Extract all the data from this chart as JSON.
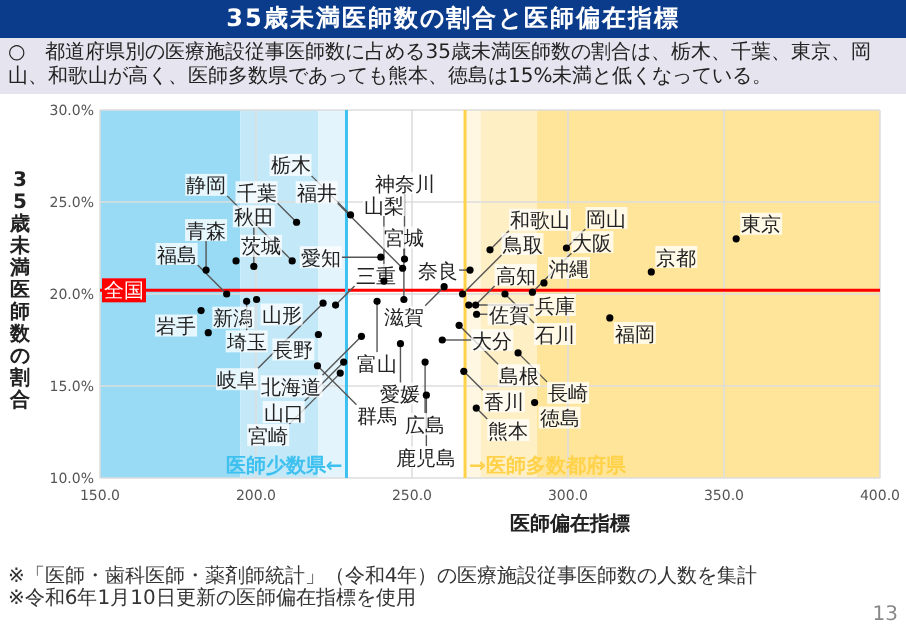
{
  "chart_data": {
    "type": "scatter",
    "title": "35歳未満医師数の割合と医師偏在指標",
    "subtitle": "○　都道府県別の医療施設従事医師数に占める35歳未満医師数の割合は、栃木、千葉、東京、岡山、和歌山が高く、医師多数県であっても熊本、徳島は15%未満と低くなっている。",
    "xlabel": "医師偏在指標",
    "ylabel": "35歳未満医師数の割合",
    "xlim": [
      150,
      400
    ],
    "ylim": [
      10,
      30
    ],
    "xticks": [
      {
        "value": 150,
        "label": "150.0"
      },
      {
        "value": 200,
        "label": "200.0"
      },
      {
        "value": 250,
        "label": "250.0"
      },
      {
        "value": 300,
        "label": "300.0"
      },
      {
        "value": 350,
        "label": "350.0"
      },
      {
        "value": 400,
        "label": "400.0"
      }
    ],
    "yticks": [
      {
        "value": 10,
        "label": "10.0%"
      },
      {
        "value": 15,
        "label": "15.0%"
      },
      {
        "value": 20,
        "label": "20.0%"
      },
      {
        "value": 25,
        "label": "25.0%"
      },
      {
        "value": 30,
        "label": "30.0%"
      }
    ],
    "grid": true,
    "marker": "circle",
    "series": [
      {
        "color": "#000000",
        "x": [
          230.3,
          213,
          193.6,
          184,
          199.3,
          211.6,
          240,
          247.6,
          247,
          241,
          260.3,
          182.4,
          190.6,
          200.2,
          197,
          221.5,
          225.5,
          238.8,
          247.4,
          184.7,
          220,
          233.8,
          246.3,
          259.7,
          254.2,
          228.1,
          219.7,
          227,
          254.6,
          265.1,
          268.6,
          266.2,
          268.2,
          270.4,
          279.8,
          288.6,
          292.3,
          275,
          299.5,
          326.7,
          353.9,
          313.4,
          270.7,
          284,
          266.6,
          270.6,
          289.3
        ],
        "values": [
          24.3,
          23.9,
          21.8,
          21.3,
          21.5,
          21.8,
          22.0,
          21.9,
          21.4,
          20.7,
          20.4,
          19.1,
          20.0,
          19.7,
          19.6,
          19.5,
          19.4,
          19.6,
          19.7,
          17.9,
          17.8,
          17.7,
          17.3,
          17.5,
          16.3,
          16.3,
          16.1,
          15.7,
          14.5,
          18.3,
          21.3,
          20.0,
          19.4,
          19.4,
          20.0,
          20.1,
          20.6,
          22.4,
          22.5,
          21.2,
          23.0,
          18.7,
          18.9,
          16.8,
          15.8,
          13.8,
          14.1
        ]
      }
    ],
    "annotations": [
      {
        "text": "栃木",
        "x": 230.3,
        "y": 24.3
      },
      {
        "text": "千葉",
        "x": 213,
        "y": 23.9
      },
      {
        "text": "茨城",
        "x": 193.6,
        "y": 21.8
      },
      {
        "text": "青森",
        "x": 184,
        "y": 21.3
      },
      {
        "text": "秋田",
        "x": 199.3,
        "y": 21.5
      },
      {
        "text": "静岡",
        "x": 211.6,
        "y": 21.8
      },
      {
        "text": "愛知",
        "x": 240,
        "y": 22.0
      },
      {
        "text": "神奈川",
        "x": 247.6,
        "y": 21.9
      },
      {
        "text": "福井",
        "x": 247,
        "y": 21.4
      },
      {
        "text": "山梨",
        "x": 241,
        "y": 20.7
      },
      {
        "text": "滋賀",
        "x": 260.3,
        "y": 20.4
      },
      {
        "text": "岩手",
        "x": 182.4,
        "y": 19.1
      },
      {
        "text": "福島",
        "x": 190.6,
        "y": 20.0
      },
      {
        "text": "山形",
        "x": 200.2,
        "y": 19.7
      },
      {
        "text": "埼玉",
        "x": 197,
        "y": 19.6
      },
      {
        "text": "岐阜",
        "x": 221.5,
        "y": 19.5
      },
      {
        "text": "三重",
        "x": 225.5,
        "y": 19.4
      },
      {
        "text": "富山",
        "x": 238.8,
        "y": 19.6
      },
      {
        "text": "宮城",
        "x": 247.4,
        "y": 19.7
      },
      {
        "text": "新潟",
        "x": 184.7,
        "y": 17.9
      },
      {
        "text": "長野",
        "x": 220,
        "y": 17.8
      },
      {
        "text": "北海道",
        "x": 233.8,
        "y": 17.7
      },
      {
        "text": "愛媛",
        "x": 246.3,
        "y": 17.3
      },
      {
        "text": "大分",
        "x": 259.7,
        "y": 17.5
      },
      {
        "text": "広島",
        "x": 254.2,
        "y": 16.3
      },
      {
        "text": "山口",
        "x": 228.1,
        "y": 16.3
      },
      {
        "text": "群馬",
        "x": 219.7,
        "y": 16.1
      },
      {
        "text": "宮崎",
        "x": 227,
        "y": 15.7
      },
      {
        "text": "鹿児島",
        "x": 254.6,
        "y": 14.5
      },
      {
        "text": "島根",
        "x": 265.1,
        "y": 18.3
      },
      {
        "text": "奈良",
        "x": 268.6,
        "y": 21.3
      },
      {
        "text": "鳥取",
        "x": 266.2,
        "y": 20.0
      },
      {
        "text": "兵庫",
        "x": 268.2,
        "y": 19.4
      },
      {
        "text": "高知",
        "x": 270.4,
        "y": 19.4
      },
      {
        "text": "石川",
        "x": 279.8,
        "y": 20.0
      },
      {
        "text": "大阪",
        "x": 288.6,
        "y": 20.1
      },
      {
        "text": "沖縄",
        "x": 292.3,
        "y": 20.6
      },
      {
        "text": "和歌山",
        "x": 275,
        "y": 22.4
      },
      {
        "text": "岡山",
        "x": 299.5,
        "y": 22.5
      },
      {
        "text": "京都",
        "x": 326.7,
        "y": 21.2
      },
      {
        "text": "東京",
        "x": 353.9,
        "y": 23.0
      },
      {
        "text": "福岡",
        "x": 313.4,
        "y": 18.7
      },
      {
        "text": "佐賀",
        "x": 270.7,
        "y": 18.9
      },
      {
        "text": "長崎",
        "x": 284,
        "y": 16.8
      },
      {
        "text": "香川",
        "x": 266.6,
        "y": 15.8
      },
      {
        "text": "熊本",
        "x": 270.6,
        "y": 13.8
      },
      {
        "text": "徳島",
        "x": 289.3,
        "y": 14.1
      },
      "※「医師・歯科医師・薬剤師統計」（令和4年）の医療施設従事医師数の人数を集計",
      "※令和6年1月10日更新の医師偏在指標を使用",
      "13"
    ],
    "ref_lines": [
      {
        "axis": "y",
        "value": 20.2,
        "label": "全国",
        "color": "#ff0000"
      },
      {
        "axis": "x",
        "value": 229,
        "label": "医師少数県←",
        "color": "#3fc1f0"
      },
      {
        "axis": "x",
        "value": 267,
        "label": "→医師多数都府県",
        "color": "#ffd24a"
      }
    ],
    "bands": [
      {
        "axis": "x",
        "from": 150,
        "to": 195,
        "color": "#99dbf5"
      },
      {
        "axis": "x",
        "from": 195,
        "to": 220,
        "color": "#c3e9f9"
      },
      {
        "axis": "x",
        "from": 220,
        "to": 229,
        "color": "#e3f4fc"
      },
      {
        "axis": "x",
        "from": 267,
        "to": 272,
        "color": "#fff7e2"
      },
      {
        "axis": "x",
        "from": 272,
        "to": 290,
        "color": "#ffefc4"
      },
      {
        "axis": "x",
        "from": 290,
        "to": 400,
        "color": "#ffe59a"
      }
    ]
  }
}
